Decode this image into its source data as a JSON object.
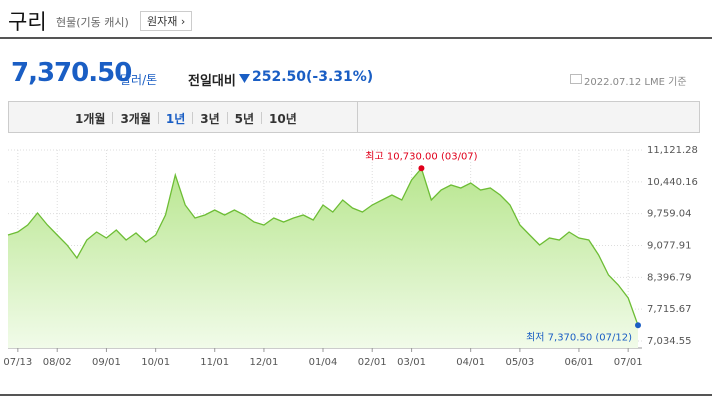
{
  "header": {
    "title": "구리",
    "subtitle": "현물(기동 캐시)",
    "button": "원자재 ›",
    "price": "7,370.50",
    "unit": "달러/톤",
    "change_label": "전일대비",
    "change": "252.50",
    "change_rate": "(-3.31%)",
    "date": "2022.07.12 LME 기준"
  },
  "tabs": [
    "1개월",
    "3개월",
    "1년",
    "3년",
    "5년",
    "10년"
  ],
  "chart_data": {
    "type": "area",
    "color": "#6dbd35",
    "grid": true,
    "categories": [
      null,
      "07/13",
      null,
      null,
      null,
      "08/02",
      null,
      null,
      null,
      null,
      "09/01",
      null,
      null,
      null,
      null,
      "10/01",
      null,
      null,
      null,
      null,
      null,
      "11/01",
      null,
      null,
      null,
      null,
      "12/01",
      null,
      null,
      null,
      null,
      null,
      "01/04",
      null,
      null,
      null,
      null,
      "02/01",
      null,
      null,
      null,
      "03/01",
      null,
      null,
      null,
      null,
      null,
      "04/01",
      null,
      null,
      null,
      null,
      "05/03",
      null,
      null,
      null,
      null,
      null,
      "06/01",
      null,
      null,
      null,
      null,
      "07/01",
      null
    ],
    "values": [
      9302,
      9367,
      9516,
      9773,
      9516,
      9302,
      9089,
      8810,
      9196,
      9367,
      9238,
      9410,
      9196,
      9345,
      9153,
      9302,
      9730,
      10586,
      9944,
      9666,
      9730,
      9837,
      9730,
      9837,
      9730,
      9581,
      9516,
      9666,
      9581,
      9666,
      9730,
      9623,
      9944,
      9794,
      10051,
      9880,
      9794,
      9944,
      10051,
      10158,
      10051,
      10479,
      10730,
      10051,
      10265,
      10372,
      10308,
      10415,
      10265,
      10308,
      10158,
      9944,
      9516,
      9302,
      9089,
      9238,
      9196,
      9367,
      9238,
      9196,
      8875,
      8447,
      8232,
      7954,
      7370.5
    ],
    "ylim": [
      7034.55,
      11121.28
    ],
    "yticks": [
      {
        "value": 11121.28,
        "label": "11,121.28"
      },
      {
        "value": 10440.16,
        "label": "10,440.16"
      },
      {
        "value": 9759.04,
        "label": "9,759.04"
      },
      {
        "value": 9077.91,
        "label": "9,077.91"
      },
      {
        "value": 8396.79,
        "label": "8,396.79"
      },
      {
        "value": 7715.67,
        "label": "7,715.67"
      },
      {
        "value": 7034.55,
        "label": "7,034.55"
      }
    ],
    "high_label": "최고 10,730.00 (03/07)",
    "low_label": "최저 7,370.50 (07/12)"
  }
}
